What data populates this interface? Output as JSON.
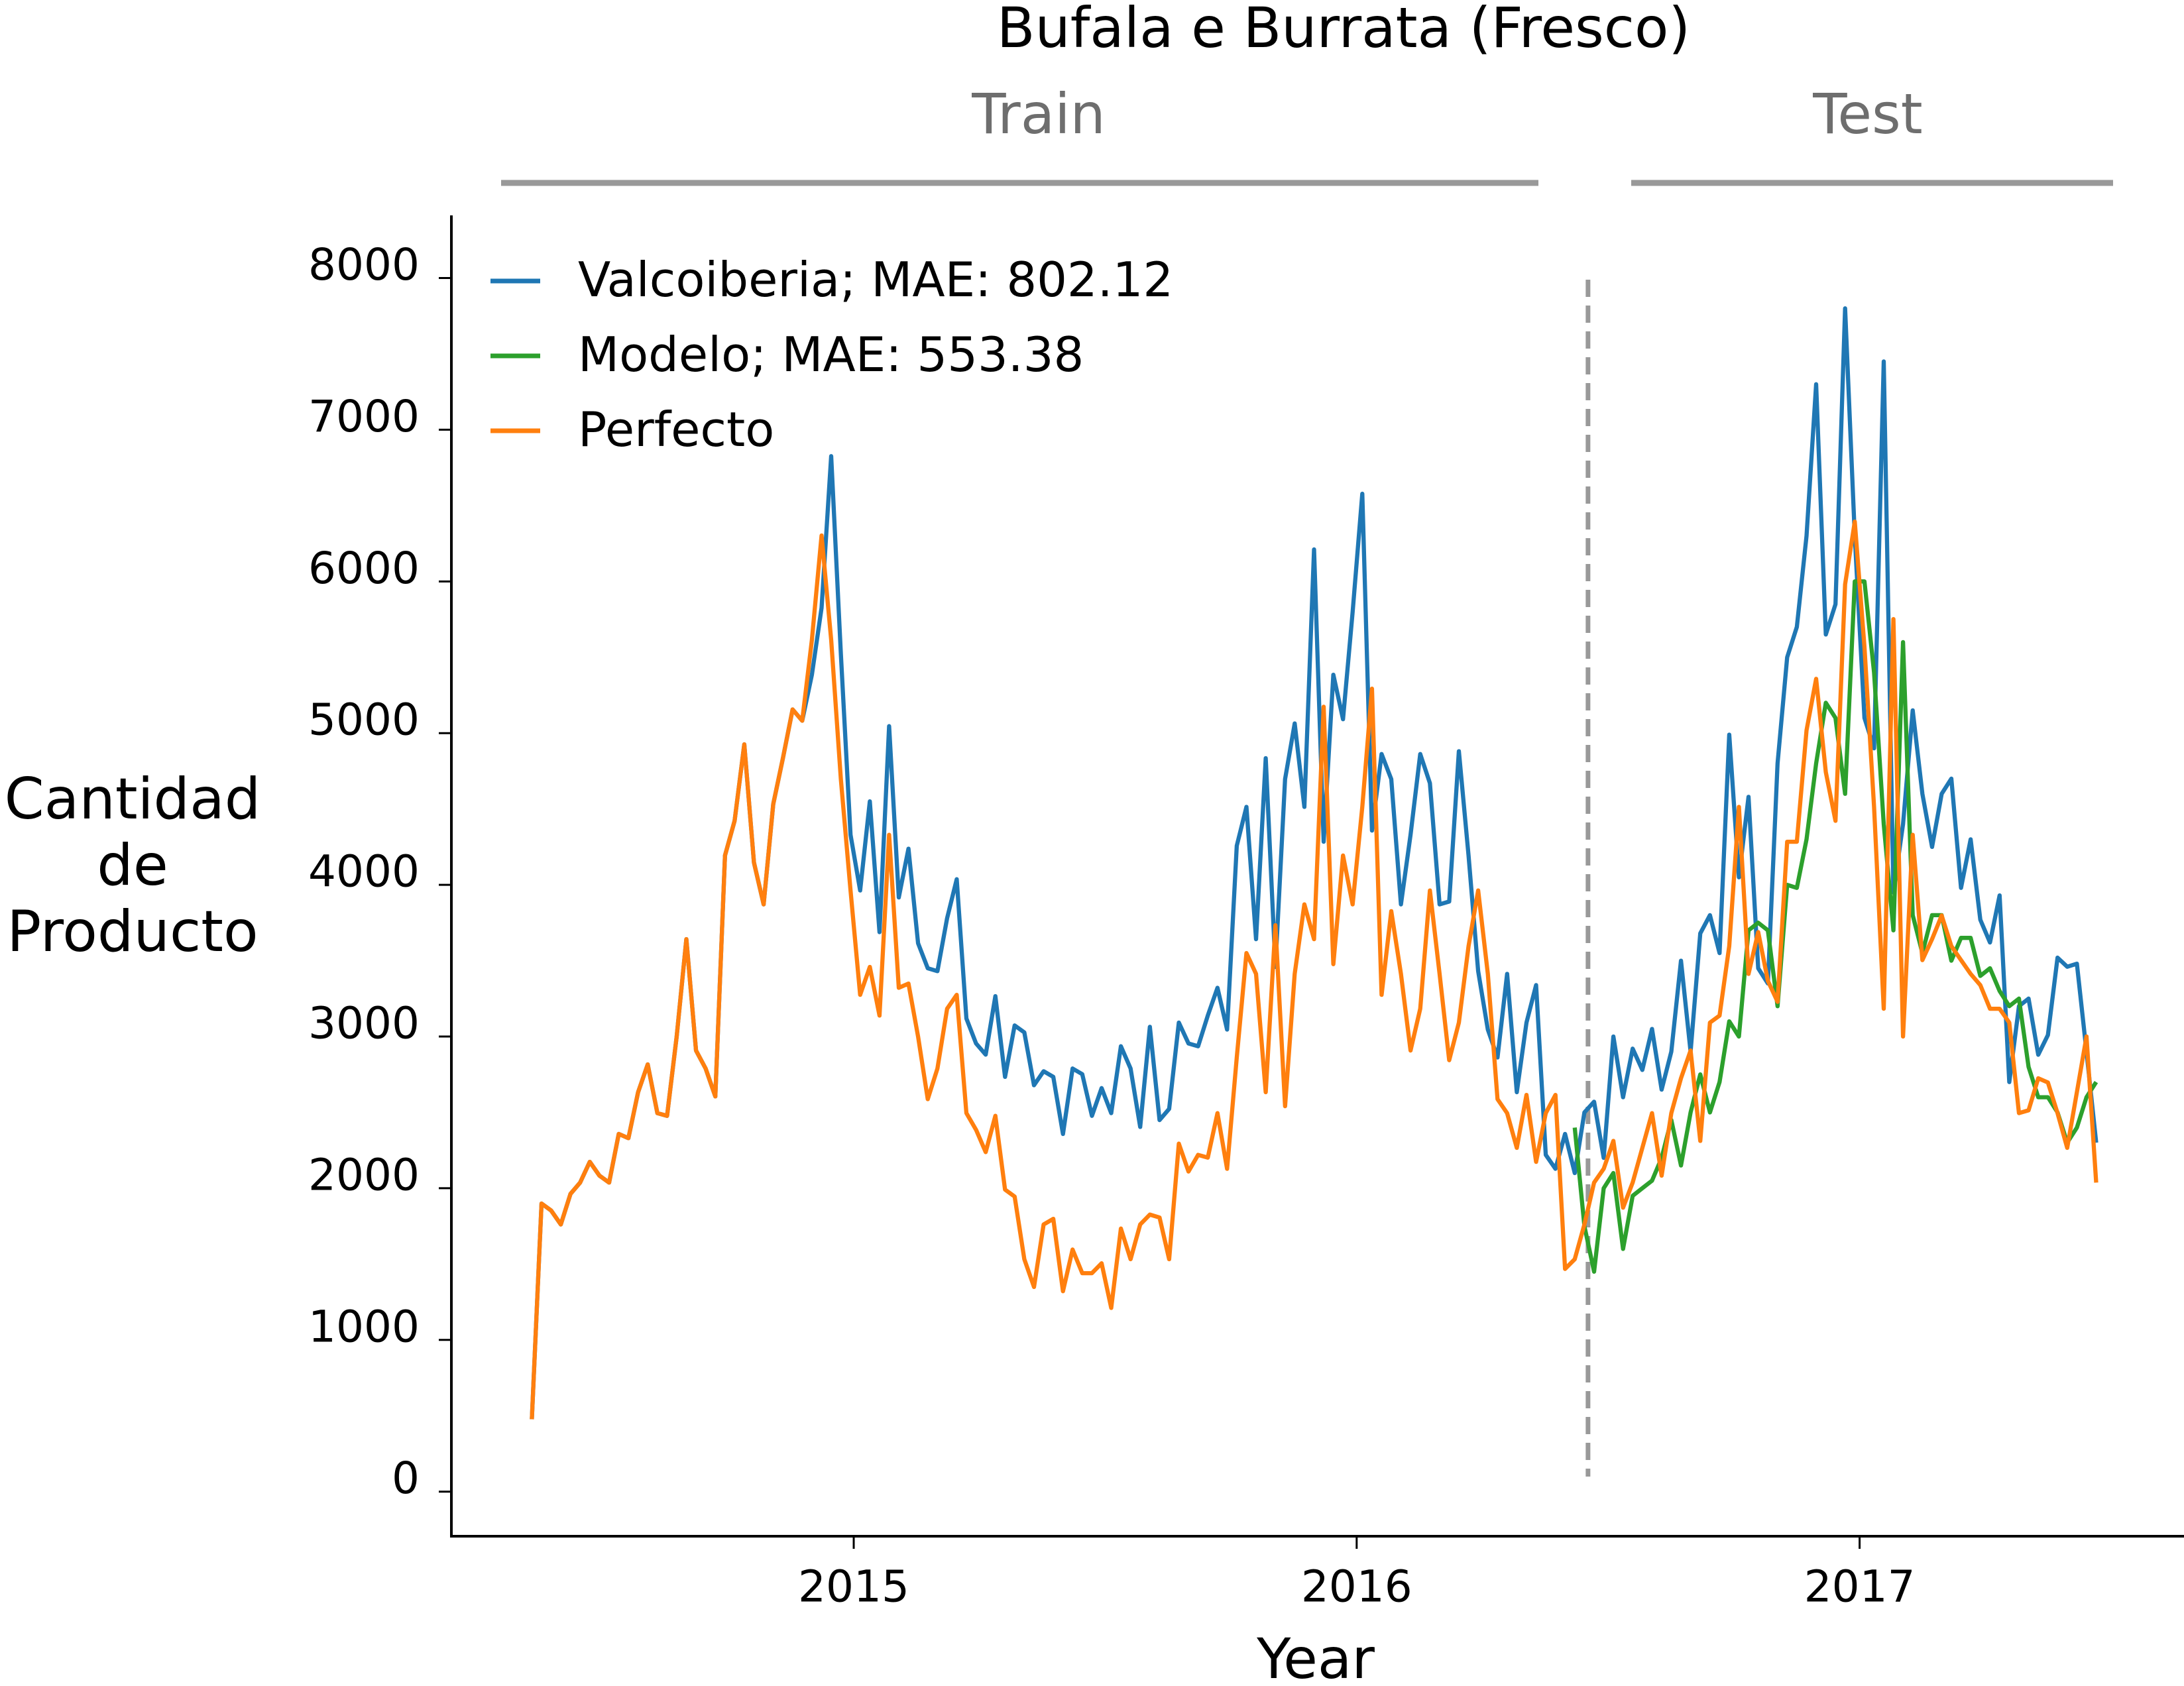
{
  "chart_data": {
    "type": "line",
    "title": "Bufala e Burrata (Fresco)",
    "annotations": [
      "Train",
      "Test"
    ],
    "xlabel": "Year",
    "ylabel": "Cantidad\nde\nProducto",
    "xlim": [
      2014.2,
      2017.645
    ],
    "ylim": [
      -294,
      8413
    ],
    "xticks": [
      2015,
      2016,
      2017
    ],
    "yticks": [
      0,
      1000,
      2000,
      3000,
      4000,
      5000,
      6000,
      7000,
      8000
    ],
    "legend": "upper left",
    "split_x": 2016.46,
    "x": [
      2014.36,
      2014.3792,
      2014.3984,
      2014.4176,
      2014.4368,
      2014.456,
      2014.4752,
      2014.4944,
      2014.5136,
      2014.5328,
      2014.552,
      2014.5712,
      2014.5904,
      2014.6096,
      2014.6288,
      2014.648,
      2014.6672,
      2014.6864,
      2014.7056,
      2014.7248,
      2014.744,
      2014.7632,
      2014.7824,
      2014.8016,
      2014.8208,
      2014.84,
      2014.8592,
      2014.8784,
      2014.8976,
      2014.9168,
      2014.936,
      2014.9552,
      2014.9744,
      2014.9936,
      2015.0128,
      2015.032,
      2015.0512,
      2015.0704,
      2015.0896,
      2015.1088,
      2015.128,
      2015.1472,
      2015.1664,
      2015.1856,
      2015.2048,
      2015.224,
      2015.2432,
      2015.2624,
      2015.2816,
      2015.3008,
      2015.32,
      2015.3392,
      2015.3584,
      2015.3776,
      2015.3968,
      2015.416,
      2015.4352,
      2015.4544,
      2015.4736,
      2015.4928,
      2015.512,
      2015.5312,
      2015.5504,
      2015.5696,
      2015.5888,
      2015.608,
      2015.6272,
      2015.6464,
      2015.6656,
      2015.6848,
      2015.704,
      2015.7232,
      2015.7424,
      2015.7616,
      2015.7808,
      2015.8,
      2015.8192,
      2015.8384,
      2015.8576,
      2015.8768,
      2015.896,
      2015.9152,
      2015.9344,
      2015.9536,
      2015.9728,
      2015.992,
      2016.0112,
      2016.0304,
      2016.0496,
      2016.0688,
      2016.088,
      2016.1072,
      2016.1264,
      2016.1456,
      2016.1648,
      2016.184,
      2016.2032,
      2016.2224,
      2016.2416,
      2016.2608,
      2016.28,
      2016.2992,
      2016.3184,
      2016.3376,
      2016.3568,
      2016.376,
      2016.3952,
      2016.4144,
      2016.4336,
      2016.4528,
      2016.472,
      2016.4912,
      2016.5104,
      2016.5296,
      2016.5488,
      2016.568,
      2016.5872,
      2016.6064,
      2016.6256,
      2016.6448,
      2016.664,
      2016.6832,
      2016.7024,
      2016.7216,
      2016.7408,
      2016.76,
      2016.7792,
      2016.7984,
      2016.8176,
      2016.8368,
      2016.856,
      2016.8752,
      2016.8944,
      2016.9136,
      2016.9328,
      2016.952,
      2016.9712,
      2016.9904,
      2017.0096,
      2017.0288,
      2017.048,
      2017.0672,
      2017.0864,
      2017.1056,
      2017.1248,
      2017.144,
      2017.1632,
      2017.1824,
      2017.2016,
      2017.2208,
      2017.24,
      2017.2592,
      2017.2784,
      2017.2976,
      2017.3168,
      2017.336,
      2017.3552,
      2017.3744,
      2017.3936,
      2017.4128,
      2017.432,
      2017.4512,
      2017.4704
    ],
    "series": [
      {
        "name": "Valcoiberia; MAE: 802.12",
        "color": "#1f77b4",
        "values": [
          477,
          1899,
          1853,
          1761,
          1963,
          2037,
          2174,
          2083,
          2037,
          2358,
          2330,
          2633,
          2816,
          2495,
          2477,
          3000,
          3642,
          2908,
          2789,
          2605,
          4193,
          4422,
          4926,
          4147,
          3871,
          4532,
          4835,
          5156,
          5082,
          5385,
          5826,
          6826,
          5523,
          4330,
          3963,
          4550,
          3688,
          5046,
          3917,
          4238,
          3615,
          3450,
          3431,
          3780,
          4037,
          3119,
          2954,
          2881,
          3266,
          2734,
          3073,
          3027,
          2679,
          2771,
          2734,
          2358,
          2789,
          2752,
          2477,
          2660,
          2495,
          2936,
          2789,
          2404,
          3064,
          2449,
          2523,
          3092,
          2954,
          2936,
          3138,
          3321,
          3046,
          4257,
          4514,
          3642,
          4835,
          3459,
          4697,
          5064,
          4514,
          6211,
          4284,
          5385,
          5092,
          5798,
          6578,
          4358,
          4862,
          4697,
          3871,
          4330,
          4862,
          4670,
          3871,
          3890,
          4881,
          4193,
          3431,
          3046,
          2862,
          3413,
          2633,
          3092,
          3339,
          2220,
          2128,
          2358,
          2100,
          2500,
          2570,
          2200,
          3000,
          2600,
          2920,
          2780,
          3050,
          2650,
          2900,
          3500,
          2900,
          3680,
          3800,
          3550,
          4990,
          4050,
          4580,
          3450,
          3350,
          4800,
          5500,
          5700,
          6300,
          7300,
          5650,
          5850,
          7800,
          6300,
          5100,
          4900,
          7450,
          3950,
          4400,
          5150,
          4600,
          4250,
          4600,
          4700,
          3980,
          4300,
          3770,
          3620,
          3930,
          2700,
          3200,
          3250,
          2880,
          3010,
          3520,
          3460,
          3480,
          2900,
          2300
        ]
      },
      {
        "name": "Modelo; MAE: 553.38",
        "color": "#2ca02c",
        "values": [
          null,
          null,
          null,
          null,
          null,
          null,
          null,
          null,
          null,
          null,
          null,
          null,
          null,
          null,
          null,
          null,
          null,
          null,
          null,
          null,
          null,
          null,
          null,
          null,
          null,
          null,
          null,
          null,
          null,
          null,
          null,
          null,
          null,
          null,
          null,
          null,
          null,
          null,
          null,
          null,
          null,
          null,
          null,
          null,
          null,
          null,
          null,
          null,
          null,
          null,
          null,
          null,
          null,
          null,
          null,
          null,
          null,
          null,
          null,
          null,
          null,
          null,
          null,
          null,
          null,
          null,
          null,
          null,
          null,
          null,
          null,
          null,
          null,
          null,
          null,
          null,
          null,
          null,
          null,
          null,
          null,
          null,
          null,
          null,
          null,
          null,
          null,
          null,
          null,
          null,
          null,
          null,
          null,
          null,
          null,
          null,
          null,
          null,
          null,
          null,
          null,
          null,
          null,
          null,
          null,
          null,
          null,
          null,
          2400,
          1750,
          1450,
          2000,
          2100,
          1600,
          1950,
          2000,
          2050,
          2200,
          2450,
          2150,
          2500,
          2750,
          2500,
          2700,
          3100,
          3000,
          3700,
          3750,
          3700,
          3200,
          4000,
          3980,
          4300,
          4800,
          5200,
          5100,
          4600,
          6000,
          6000,
          5400,
          4400,
          3700,
          5600,
          3800,
          3550,
          3800,
          3800,
          3500,
          3650,
          3650,
          3400,
          3450,
          3300,
          3200,
          3250,
          2800,
          2600,
          2600,
          2500,
          2300,
          2400,
          2600,
          2700
        ]
      },
      {
        "name": "Perfecto",
        "color": "#ff7f0e",
        "values": [
          477,
          1899,
          1853,
          1761,
          1963,
          2037,
          2174,
          2083,
          2037,
          2358,
          2330,
          2633,
          2816,
          2495,
          2477,
          3000,
          3642,
          2908,
          2789,
          2605,
          4193,
          4422,
          4926,
          4147,
          3871,
          4532,
          4835,
          5156,
          5082,
          5615,
          6303,
          5615,
          4697,
          3963,
          3275,
          3459,
          3138,
          4330,
          3321,
          3349,
          3000,
          2587,
          2789,
          3183,
          3275,
          2495,
          2385,
          2238,
          2477,
          1991,
          1945,
          1532,
          1349,
          1761,
          1798,
          1321,
          1596,
          1440,
          1440,
          1505,
          1211,
          1734,
          1532,
          1761,
          1826,
          1807,
          1532,
          2294,
          2110,
          2220,
          2202,
          2495,
          2128,
          2862,
          3550,
          3413,
          2633,
          3734,
          2541,
          3413,
          3871,
          3642,
          5174,
          3477,
          4193,
          3871,
          4514,
          5293,
          3275,
          3826,
          3413,
          2908,
          3183,
          3963,
          3413,
          2844,
          3092,
          3596,
          3963,
          3413,
          2587,
          2495,
          2266,
          2615,
          2174,
          2495,
          2615,
          1468,
          1532,
          1761,
          2037,
          2128,
          2312,
          1872,
          2037,
          2266,
          2495,
          2083,
          2495,
          2725,
          2908,
          2312,
          3092,
          3138,
          3596,
          4514,
          3413,
          3688,
          3367,
          3229,
          4284,
          4284,
          5018,
          5358,
          4743,
          4422,
          5981,
          6394,
          5569,
          4514,
          3183,
          5752,
          3000,
          4330,
          3504,
          3642,
          3798,
          3596,
          3504,
          3413,
          3339,
          3183,
          3183,
          3092,
          2495,
          2514,
          2725,
          2697,
          2495,
          2266,
          2633,
          3000,
          2037
        ]
      }
    ]
  }
}
